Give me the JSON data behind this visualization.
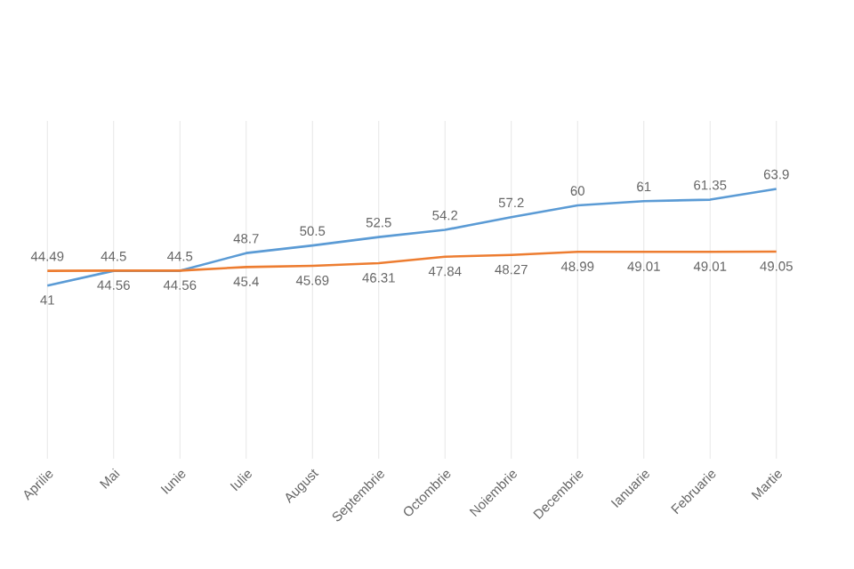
{
  "chart_data": {
    "type": "line",
    "categories": [
      "Aprilie",
      "Mai",
      "Iunie",
      "Iulie",
      "August",
      "Septembrie",
      "Octombrie",
      "Noiembrie",
      "Decembrie",
      "Ianuarie",
      "Februarie",
      "Martie"
    ],
    "series": [
      {
        "color": "#5b9bd5",
        "values": [
          41,
          44.5,
          44.5,
          48.7,
          50.5,
          52.5,
          54.2,
          57.2,
          60,
          61,
          61.35,
          63.9
        ]
      },
      {
        "color": "#ed7d31",
        "values": [
          44.49,
          44.56,
          44.56,
          45.4,
          45.69,
          46.31,
          47.84,
          48.27,
          48.99,
          49.01,
          49.01,
          49.05
        ]
      }
    ],
    "ylim": [
      0,
      80
    ],
    "data_labels": true,
    "grid": "x",
    "marker": "none",
    "line_style": "solid"
  }
}
